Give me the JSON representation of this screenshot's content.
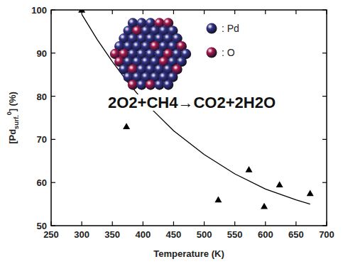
{
  "chart_data": {
    "type": "scatter",
    "x_label": "Temperature (K)",
    "y_label": {
      "text": "[Pd",
      "sub": "surf.",
      "sup": "0",
      "tail": "] (%)"
    },
    "xlim": [
      250,
      700
    ],
    "xticks": [
      250,
      300,
      350,
      400,
      450,
      500,
      550,
      600,
      650,
      700
    ],
    "ylim": [
      50,
      100
    ],
    "yticks": [
      50,
      60,
      70,
      80,
      90,
      100
    ],
    "grid": false,
    "series": [
      {
        "type": "scatter",
        "marker": "triangle",
        "color": "#000000",
        "x": [
          300,
          373,
          523,
          573,
          598,
          623,
          673
        ],
        "values": [
          100,
          73,
          56,
          63,
          54.5,
          59.5,
          57.5
        ]
      },
      {
        "type": "line",
        "line_style": "solid",
        "color": "#000000",
        "x": [
          300,
          325,
          350,
          375,
          400,
          450,
          500,
          550,
          600,
          650,
          673
        ],
        "values": [
          99,
          93.2,
          88,
          83.3,
          79,
          72,
          66.5,
          62,
          58.5,
          56,
          55
        ]
      }
    ],
    "annotations": [
      {
        "text": "2O2+CH4→CO2+2H2O"
      }
    ],
    "inset": {
      "items": [
        {
          "label": ": Pd",
          "color": "#33338a"
        },
        {
          "label": ": O",
          "color": "#a8184e"
        }
      ]
    }
  }
}
